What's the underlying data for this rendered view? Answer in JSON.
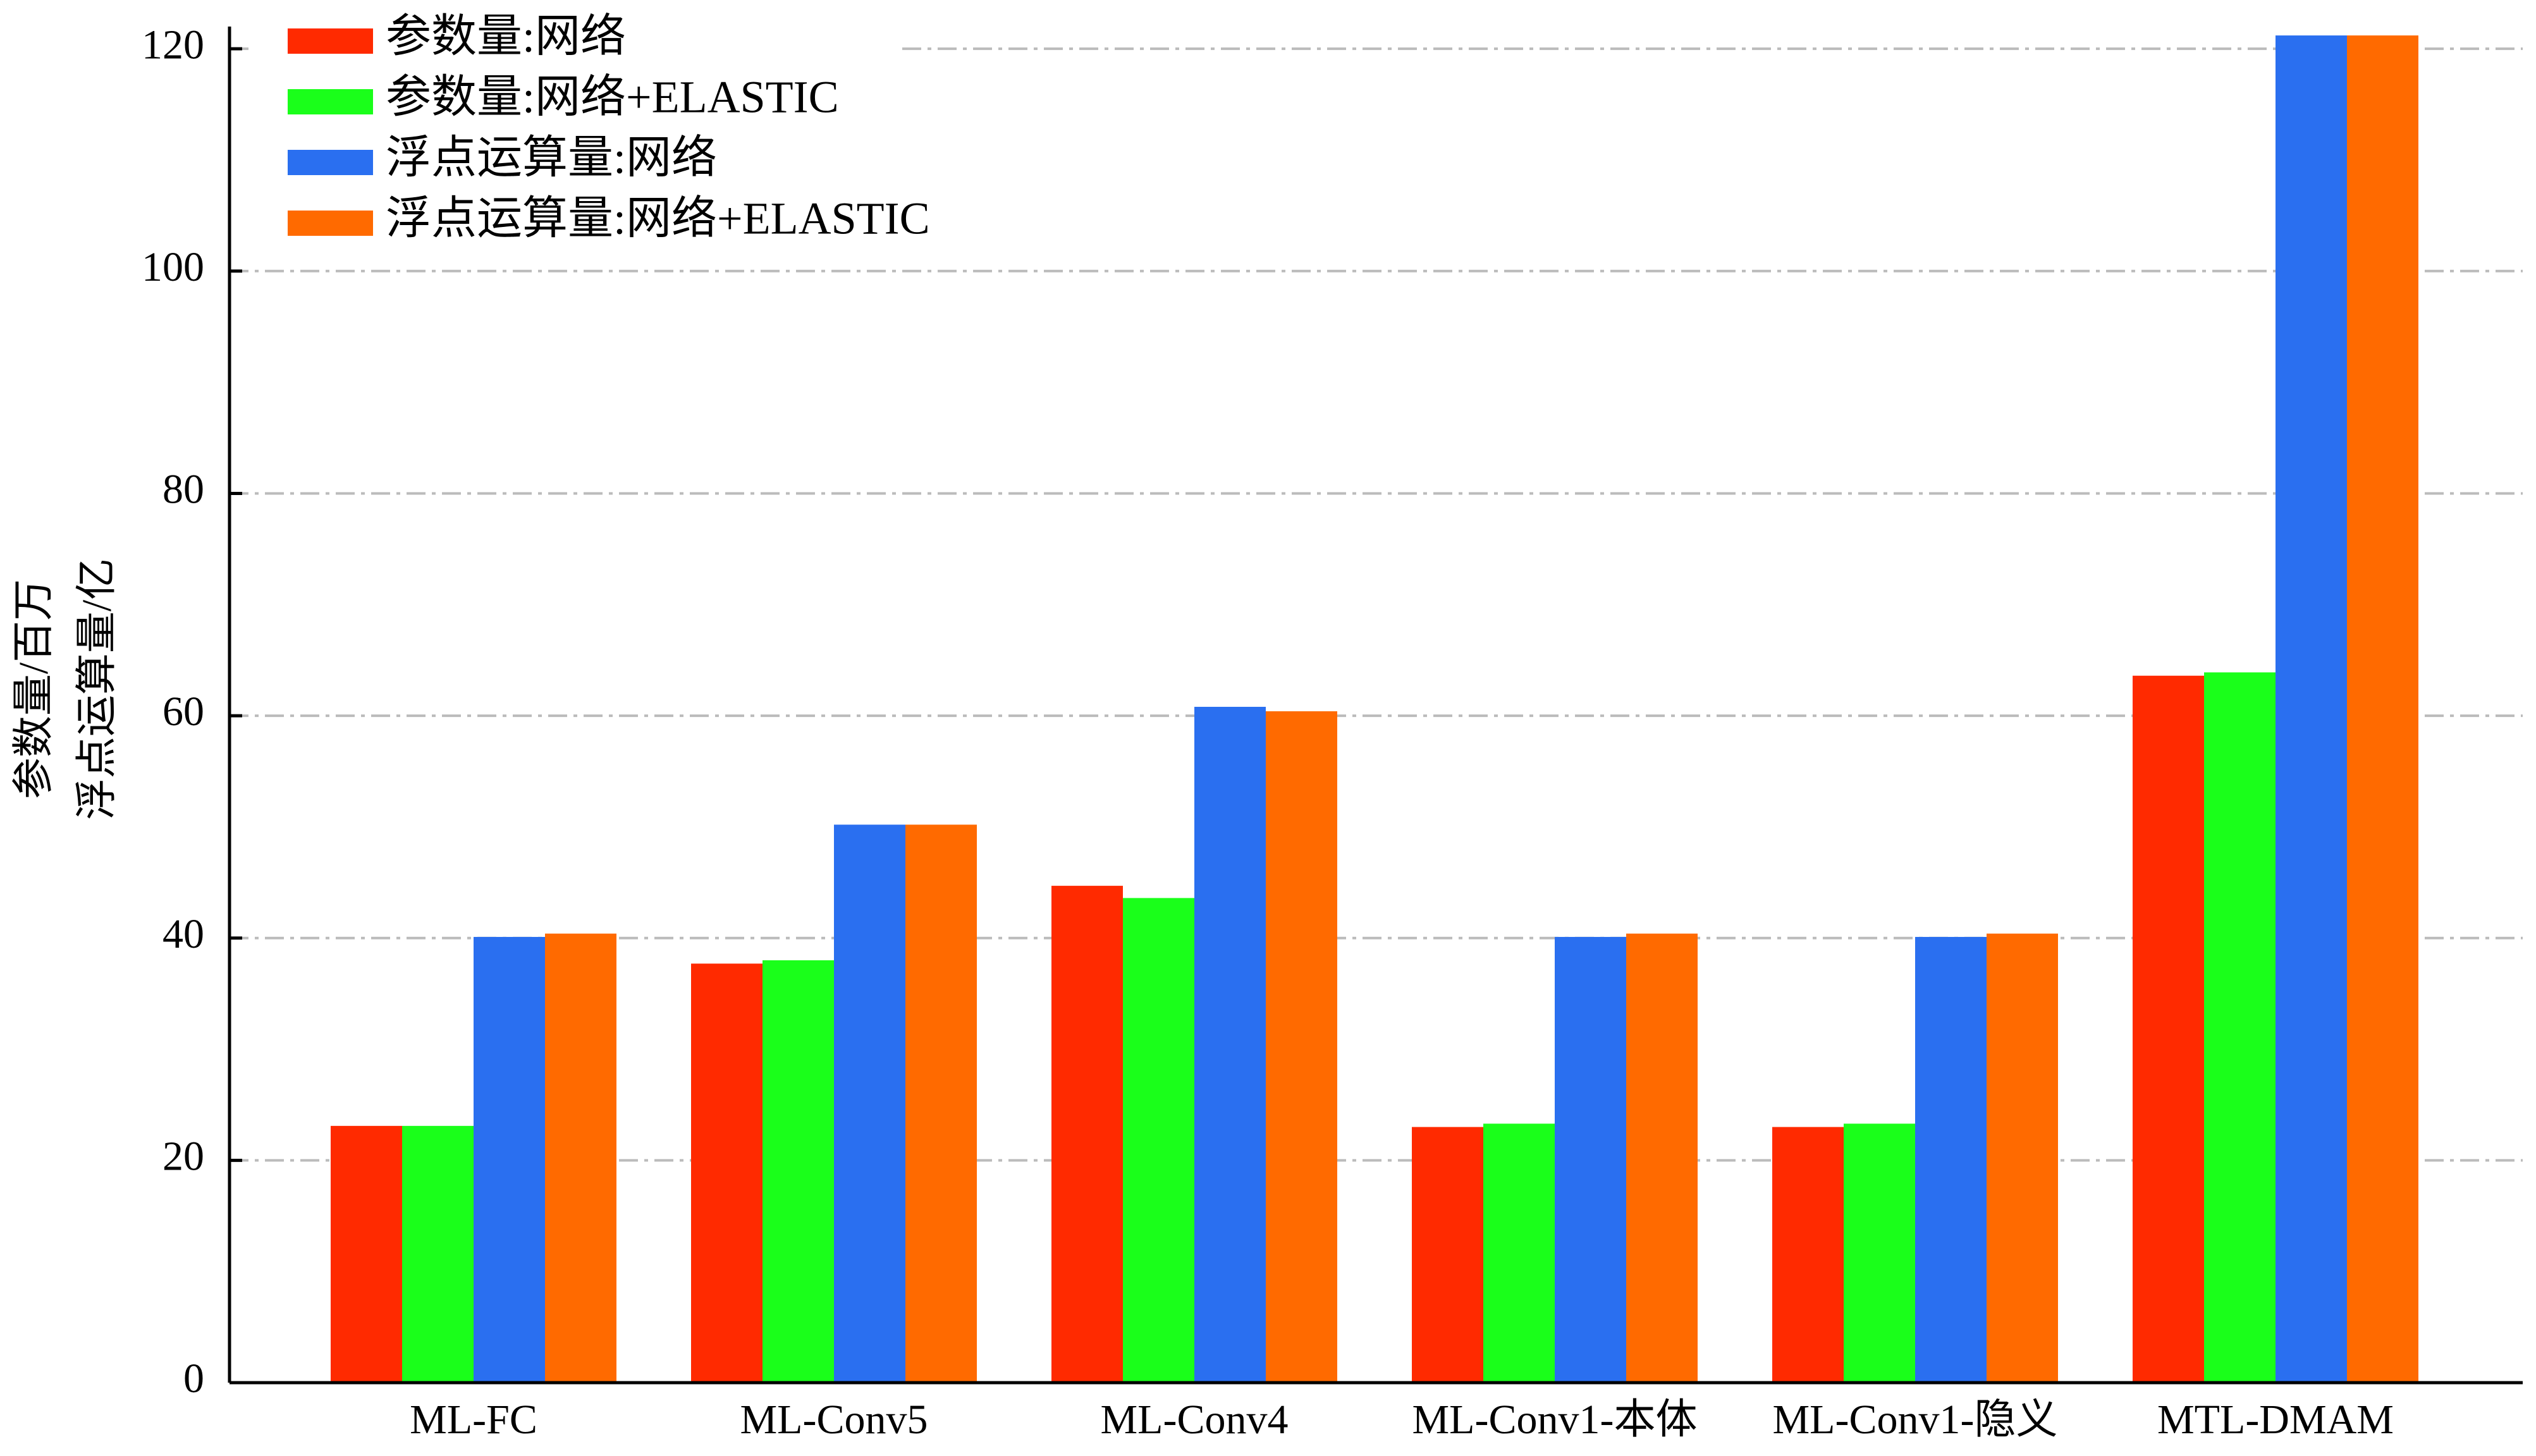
{
  "chart_data": {
    "type": "bar",
    "y_label": [
      "参数量/百万",
      "浮点运算量/亿"
    ],
    "categories": [
      "ML-FC",
      "ML-Conv5",
      "ML-Conv4",
      "ML-Conv1-本体",
      "ML-Conv1-隐义",
      "MTL-DMAM"
    ],
    "series": [
      {
        "name": "参数量:网络",
        "color": "#ff2a00",
        "values": [
          23.1,
          37.7,
          44.7,
          23.0,
          23.0,
          63.6
        ]
      },
      {
        "name": "参数量:网络+ELASTIC",
        "color": "#1aff1a",
        "values": [
          23.1,
          38.0,
          43.6,
          23.3,
          23.3,
          63.9
        ]
      },
      {
        "name": "浮点运算量:网络",
        "color": "#2a6ff0",
        "values": [
          40.1,
          50.2,
          60.8,
          40.1,
          40.1,
          121.2
        ]
      },
      {
        "name": "浮点运算量:网络+ELASTIC",
        "color": "#ff6a00",
        "values": [
          40.4,
          50.2,
          60.4,
          40.4,
          40.4,
          121.2
        ]
      }
    ],
    "ylim": [
      0,
      122
    ],
    "yticks": [
      0,
      20,
      40,
      60,
      80,
      100,
      120
    ],
    "grid": true,
    "legend": "top-left"
  }
}
